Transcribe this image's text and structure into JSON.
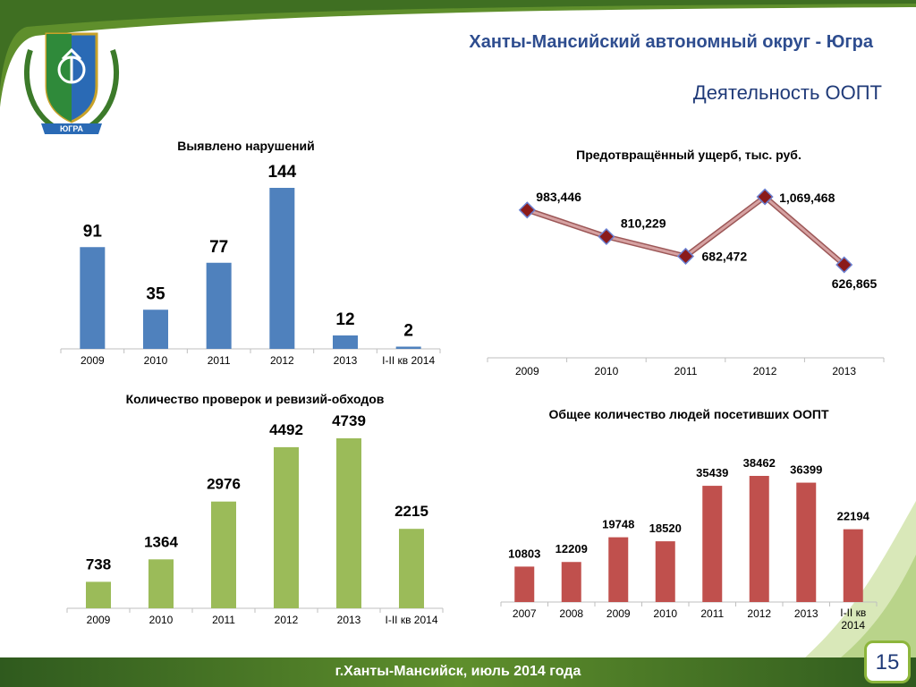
{
  "header": {
    "title": "Ханты-Мансийский автономный округ - Югра",
    "subtitle": "Деятельность ООПТ",
    "emblem_text": "ЮГРА"
  },
  "footer": {
    "text": "г.Ханты-Мансийск, июль 2014 года",
    "page_number": "15"
  },
  "colors": {
    "blue": "#4f81bd",
    "green": "#9bbb59",
    "red": "#c0504d",
    "line": "#b67a7a",
    "marker": "#8b1a1a",
    "accent": "#8db63c",
    "footer": "#3f6f22"
  },
  "chart_data": [
    {
      "type": "bar",
      "title": "Выявлено нарушений",
      "categories": [
        "2009",
        "2010",
        "2011",
        "2012",
        "2013",
        "I-II кв 2014"
      ],
      "values": [
        91,
        35,
        77,
        144,
        12,
        2
      ],
      "ylim": [
        0,
        144
      ],
      "color": "#4f81bd",
      "grid": false
    },
    {
      "type": "line",
      "title": "Предотвращённый ущерб, тыс. руб.",
      "categories": [
        "2009",
        "2010",
        "2011",
        "2012",
        "2013"
      ],
      "values": [
        983.446,
        810.229,
        682.472,
        1069.468,
        626.865
      ],
      "labels": [
        "983,446",
        "810,229",
        "682,472",
        "1,069,468",
        "626,865"
      ],
      "grid": false
    },
    {
      "type": "bar",
      "title": "Количество проверок и ревизий-обходов",
      "categories": [
        "2009",
        "2010",
        "2011",
        "2012",
        "2013",
        "I-II кв 2014"
      ],
      "values": [
        738,
        1364,
        2976,
        4492,
        4739,
        2215
      ],
      "ylim": [
        0,
        4739
      ],
      "color": "#9bbb59",
      "grid": false
    },
    {
      "type": "bar",
      "title": "Общее количество людей посетивших ООПТ",
      "categories": [
        "2007",
        "2008",
        "2009",
        "2010",
        "2011",
        "2012",
        "2013",
        "I-II кв 2014"
      ],
      "values": [
        10803,
        12209,
        19748,
        18520,
        35439,
        38462,
        36399,
        22194
      ],
      "ylim": [
        0,
        38462
      ],
      "color": "#c0504d",
      "grid": false
    }
  ]
}
